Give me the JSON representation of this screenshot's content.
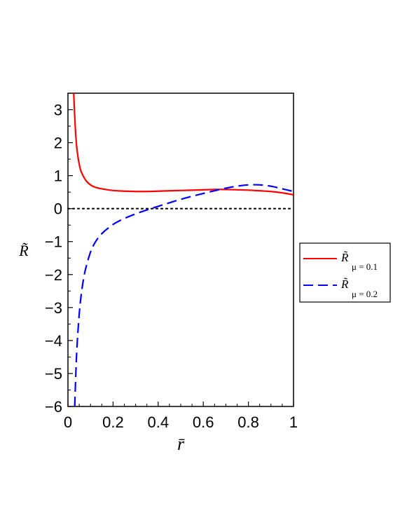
{
  "chart_data": {
    "type": "line",
    "title": "",
    "xlabel": "r̄",
    "ylabel": "R̃",
    "xlim": [
      0,
      1
    ],
    "ylim": [
      -6,
      3.5
    ],
    "x_ticks": [
      0,
      0.2,
      0.4,
      0.6,
      0.8,
      1
    ],
    "x_tick_labels": [
      "0",
      "0.2",
      "0.4",
      "0.6",
      "0.8",
      "1"
    ],
    "y_ticks": [
      3,
      2,
      1,
      0,
      -1,
      -2,
      -3,
      -4,
      -5,
      -6
    ],
    "y_tick_labels": [
      "3",
      "2",
      "1",
      "0",
      "−1",
      "−2",
      "−3",
      "−4",
      "−5",
      "−6"
    ],
    "grid": false,
    "legend_position": "right",
    "reference_line": {
      "y": 0,
      "style": "dotted",
      "color": "#000000"
    },
    "series": [
      {
        "name": "R̃ μ = 0.1",
        "symbol": "R̃",
        "subscript": "μ = 0.1",
        "color": "#ff0000",
        "dash": "solid",
        "x": [
          0.025,
          0.03,
          0.035,
          0.04,
          0.05,
          0.06,
          0.08,
          0.1,
          0.12,
          0.15,
          0.2,
          0.25,
          0.3,
          0.35,
          0.4,
          0.5,
          0.6,
          0.65,
          0.7,
          0.8,
          0.85,
          0.9,
          0.95,
          1.0
        ],
        "y": [
          3.6,
          2.8,
          2.2,
          1.8,
          1.35,
          1.1,
          0.85,
          0.72,
          0.65,
          0.6,
          0.55,
          0.53,
          0.52,
          0.52,
          0.53,
          0.55,
          0.57,
          0.58,
          0.58,
          0.56,
          0.54,
          0.52,
          0.48,
          0.42
        ]
      },
      {
        "name": "R̃ μ = 0.2",
        "symbol": "R̃",
        "subscript": "μ = 0.2",
        "color": "#0000ff",
        "dash": "dashed",
        "x": [
          0.03,
          0.035,
          0.04,
          0.05,
          0.06,
          0.07,
          0.08,
          0.1,
          0.12,
          0.15,
          0.2,
          0.25,
          0.3,
          0.35,
          0.4,
          0.5,
          0.6,
          0.7,
          0.75,
          0.8,
          0.85,
          0.9,
          0.95,
          1.0
        ],
        "y": [
          -6.0,
          -5.0,
          -4.2,
          -3.2,
          -2.55,
          -2.1,
          -1.78,
          -1.32,
          -1.03,
          -0.76,
          -0.48,
          -0.3,
          -0.16,
          -0.04,
          0.07,
          0.28,
          0.46,
          0.62,
          0.68,
          0.72,
          0.72,
          0.68,
          0.6,
          0.52
        ]
      }
    ]
  }
}
